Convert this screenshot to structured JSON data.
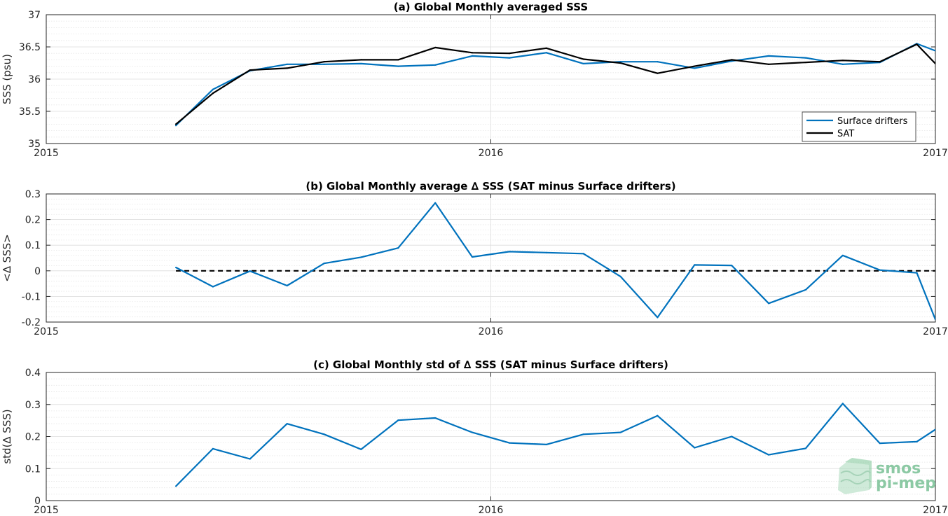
{
  "chart_data": [
    {
      "type": "line",
      "title": "(a) Global Monthly averaged SSS",
      "ylabel": "SSS (psu)",
      "xlabel": "",
      "xlim": [
        2015.0,
        2017.0
      ],
      "ylim": [
        35,
        37
      ],
      "xticks": [
        2015,
        2016,
        2017
      ],
      "xtick_labels": [
        "2015",
        "2016",
        "2017"
      ],
      "yticks": [
        35,
        35.5,
        36,
        36.5,
        37
      ],
      "ytick_labels": [
        "35",
        "35.5",
        "36",
        "36.5",
        "37"
      ],
      "grid": true,
      "minor_grid": true,
      "legend_position": "bottom-right",
      "x": [
        2015.2917,
        2015.375,
        2015.4583,
        2015.5417,
        2015.625,
        2015.7083,
        2015.7917,
        2015.875,
        2015.9583,
        2016.0417,
        2016.125,
        2016.2083,
        2016.2917,
        2016.375,
        2016.4583,
        2016.5417,
        2016.625,
        2016.7083,
        2016.7917,
        2016.875,
        2016.9583,
        2017.0
      ],
      "series": [
        {
          "name": "Surface drifters",
          "color": "#0072bd",
          "values": [
            35.28,
            35.84,
            36.13,
            36.23,
            36.23,
            36.24,
            36.2,
            36.22,
            36.36,
            36.33,
            36.41,
            36.24,
            36.27,
            36.27,
            36.17,
            36.28,
            36.36,
            36.33,
            36.23,
            36.26,
            36.55,
            36.44
          ]
        },
        {
          "name": "SAT",
          "color": "#000000",
          "values": [
            35.3,
            35.78,
            36.14,
            36.17,
            36.27,
            36.3,
            36.3,
            36.49,
            36.41,
            36.4,
            36.48,
            36.31,
            36.25,
            36.09,
            36.2,
            36.3,
            36.23,
            36.26,
            36.29,
            36.27,
            36.54,
            36.24
          ]
        }
      ]
    },
    {
      "type": "line",
      "title": "(b) Global Monthly average ∆ SSS (SAT minus Surface drifters)",
      "ylabel": "<∆ SSS>",
      "xlabel": "",
      "xlim": [
        2015.0,
        2017.0
      ],
      "ylim": [
        -0.2,
        0.3
      ],
      "xticks": [
        2015,
        2016,
        2017
      ],
      "xtick_labels": [
        "2015",
        "2016",
        "2017"
      ],
      "yticks": [
        -0.2,
        -0.1,
        0,
        0.1,
        0.2,
        0.3
      ],
      "ytick_labels": [
        "-0.2",
        "-0.1",
        "0",
        "0.1",
        "0.2",
        "0.3"
      ],
      "grid": true,
      "minor_grid": true,
      "zero_line": {
        "y": 0,
        "x_start": 2015.2917,
        "x_end": 2017.0,
        "style": "dashed",
        "color": "#000000"
      },
      "x": [
        2015.2917,
        2015.375,
        2015.4583,
        2015.5417,
        2015.625,
        2015.7083,
        2015.7917,
        2015.875,
        2015.9583,
        2016.0417,
        2016.125,
        2016.2083,
        2016.2917,
        2016.375,
        2016.4583,
        2016.5417,
        2016.625,
        2016.7083,
        2016.7917,
        2016.875,
        2016.9583,
        2017.0
      ],
      "series": [
        {
          "color": "#0072bd",
          "values": [
            0.013,
            -0.062,
            -0.001,
            -0.058,
            0.029,
            0.053,
            0.089,
            0.265,
            0.054,
            0.075,
            0.071,
            0.067,
            -0.022,
            -0.182,
            0.023,
            0.021,
            -0.127,
            -0.074,
            0.06,
            0.003,
            -0.008,
            -0.19
          ]
        }
      ]
    },
    {
      "type": "line",
      "title": "(c) Global Monthly std of ∆ SSS (SAT minus Surface drifters)",
      "ylabel": "std(∆ SSS)",
      "xlabel": "",
      "xlim": [
        2015.0,
        2017.0
      ],
      "ylim": [
        0,
        0.4
      ],
      "xticks": [
        2015,
        2016,
        2017
      ],
      "xtick_labels": [
        "2015",
        "2016",
        "2017"
      ],
      "yticks": [
        0,
        0.1,
        0.2,
        0.3,
        0.4
      ],
      "ytick_labels": [
        "0",
        "0.1",
        "0.2",
        "0.3",
        "0.4"
      ],
      "grid": true,
      "minor_grid": true,
      "x": [
        2015.2917,
        2015.375,
        2015.4583,
        2015.5417,
        2015.625,
        2015.7083,
        2015.7917,
        2015.875,
        2015.9583,
        2016.0417,
        2016.125,
        2016.2083,
        2016.2917,
        2016.375,
        2016.4583,
        2016.5417,
        2016.625,
        2016.7083,
        2016.7917,
        2016.875,
        2016.9583,
        2017.0
      ],
      "series": [
        {
          "color": "#0072bd",
          "values": [
            0.045,
            0.162,
            0.13,
            0.24,
            0.207,
            0.16,
            0.251,
            0.258,
            0.213,
            0.18,
            0.175,
            0.207,
            0.213,
            0.265,
            0.165,
            0.2,
            0.143,
            0.163,
            0.303,
            0.179,
            0.184,
            0.222
          ]
        }
      ]
    }
  ],
  "watermark": {
    "line1": "smos",
    "line2": "pi-mep",
    "icon": "smos-pi-mep-logo-icon",
    "color": "#8cc9a4"
  }
}
